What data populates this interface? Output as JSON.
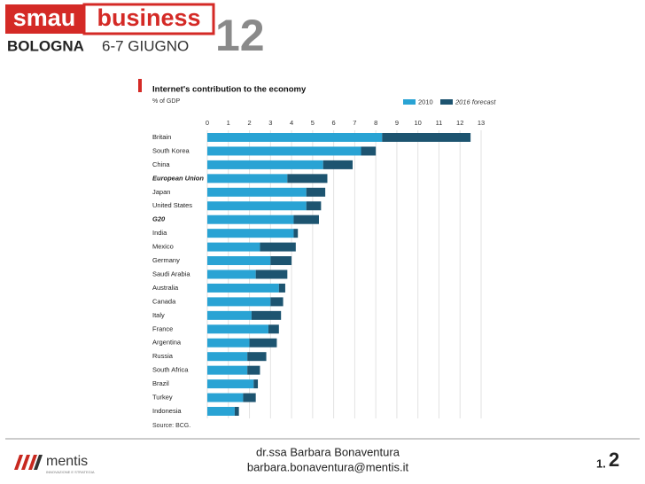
{
  "header": {
    "brand": "smau",
    "brand_suffix": "business",
    "city": "BOLOGNA",
    "dates": "6-7 GIUGNO",
    "edition": "12"
  },
  "chart_data": {
    "type": "stacked-barh",
    "title": "Internet's contribution to the economy",
    "subtitle": "% of GDP",
    "source": "Source: BCG.",
    "categories": [
      "Britain",
      "South Korea",
      "China",
      "European Union",
      "Japan",
      "United States",
      "G20",
      "India",
      "Mexico",
      "Germany",
      "Saudi Arabia",
      "Australia",
      "Canada",
      "Italy",
      "France",
      "Argentina",
      "Russia",
      "South Africa",
      "Brazil",
      "Turkey",
      "Indonesia"
    ],
    "series": [
      {
        "name": "2010",
        "color": "#29a3d4",
        "values": [
          8.3,
          7.3,
          5.5,
          3.8,
          4.7,
          4.7,
          4.1,
          4.1,
          2.5,
          3.0,
          2.3,
          3.4,
          3.0,
          2.1,
          2.9,
          2.0,
          1.9,
          1.9,
          2.2,
          1.7,
          1.3
        ]
      },
      {
        "name": "2016 forecast",
        "color": "#1d5470",
        "values": [
          4.2,
          0.7,
          1.4,
          1.9,
          0.9,
          0.7,
          1.2,
          0.2,
          1.7,
          1.0,
          1.5,
          0.3,
          0.6,
          1.4,
          0.5,
          1.3,
          0.9,
          0.6,
          0.2,
          0.6,
          0.2
        ]
      }
    ],
    "xlim": [
      0,
      13
    ],
    "xticks": [
      0,
      1,
      2,
      3,
      4,
      5,
      6,
      7,
      8,
      9,
      10,
      11,
      12,
      13
    ],
    "grid": true
  },
  "footer": {
    "company": "mentis",
    "tagline": "INNOVAZIONE E STRATEGIA",
    "author": "dr.ssa Barbara Bonaventura",
    "email": "barbara.bonaventura@mentis.it",
    "section": "1.",
    "page": "2"
  }
}
